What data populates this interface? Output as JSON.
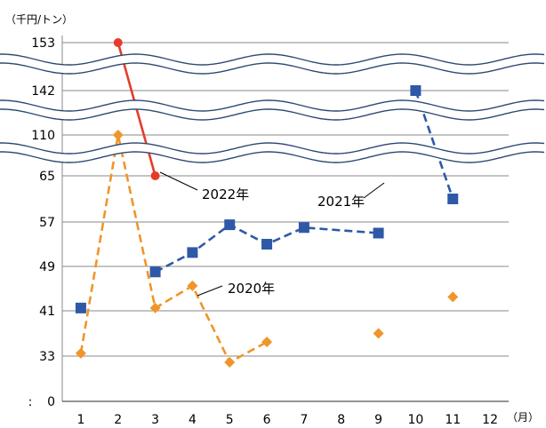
{
  "chart_data": {
    "type": "line",
    "unit_label": "（千円/トン）",
    "x_unit_label": "（月）",
    "categories": [
      "1",
      "2",
      "3",
      "4",
      "5",
      "6",
      "7",
      "8",
      "9",
      "10",
      "11",
      "12"
    ],
    "y_tick_labels": [
      "0",
      "33",
      "41",
      "49",
      "57",
      "65",
      "110",
      "142",
      "153"
    ],
    "axis_break_marker": ":",
    "ylim": [
      0,
      153
    ],
    "grid": true,
    "series": [
      {
        "name": "2022年",
        "color": "#e63c2c",
        "line_style": "solid",
        "marker": "circle",
        "points": [
          [
            2,
            153
          ],
          [
            3,
            65
          ]
        ]
      },
      {
        "name": "2021年",
        "color": "#2e59a7",
        "line_style": "dashed",
        "marker": "square",
        "points": [
          [
            1,
            41.5
          ],
          [
            3,
            48
          ],
          [
            4,
            51.5
          ],
          [
            5,
            56.5
          ],
          [
            6,
            53
          ],
          [
            7,
            56
          ],
          [
            9,
            55
          ],
          [
            10,
            142
          ],
          [
            11,
            61
          ]
        ],
        "segments": [
          [
            1,
            2,
            3,
            4,
            5,
            6
          ],
          [
            7,
            8
          ]
        ]
      },
      {
        "name": "2020年",
        "color": "#f0952a",
        "line_style": "dashed",
        "marker": "diamond",
        "points": [
          [
            1,
            33.5
          ],
          [
            2,
            110
          ],
          [
            3,
            41.5
          ],
          [
            4,
            45.5
          ],
          [
            5,
            28.5
          ],
          [
            6,
            35.5
          ],
          [
            9,
            37
          ],
          [
            11,
            43.5
          ]
        ],
        "segments": [
          [
            0,
            1,
            2,
            3,
            4,
            5
          ]
        ]
      }
    ]
  }
}
